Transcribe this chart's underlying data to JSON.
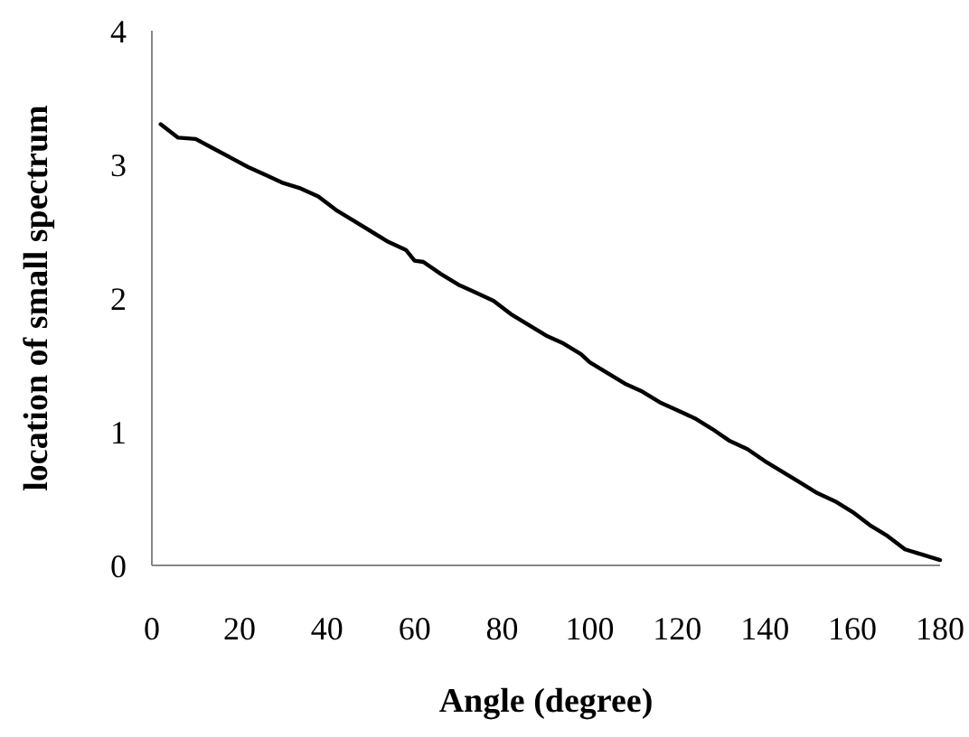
{
  "chart_data": {
    "type": "line",
    "xlabel": "Angle (degree)",
    "ylabel": "location of small spectrum",
    "x": [
      2,
      4,
      6,
      10,
      14,
      18,
      22,
      26,
      30,
      34,
      38,
      42,
      46,
      50,
      54,
      58,
      60,
      62,
      66,
      70,
      74,
      78,
      82,
      86,
      90,
      94,
      98,
      100,
      104,
      108,
      112,
      116,
      120,
      124,
      128,
      132,
      136,
      140,
      144,
      148,
      152,
      156,
      160,
      164,
      168,
      172,
      176,
      180
    ],
    "series": [
      {
        "color": "#000000",
        "values": [
          3.3,
          3.25,
          3.2,
          3.19,
          3.12,
          3.05,
          2.98,
          2.92,
          2.86,
          2.82,
          2.76,
          2.66,
          2.58,
          2.5,
          2.42,
          2.36,
          2.28,
          2.27,
          2.18,
          2.1,
          2.04,
          1.98,
          1.88,
          1.8,
          1.72,
          1.66,
          1.58,
          1.52,
          1.44,
          1.36,
          1.3,
          1.22,
          1.16,
          1.1,
          1.02,
          0.93,
          0.87,
          0.78,
          0.7,
          0.62,
          0.54,
          0.48,
          0.4,
          0.3,
          0.22,
          0.12,
          0.08,
          0.04
        ]
      }
    ],
    "xlim": [
      0,
      180
    ],
    "xticks": [
      0,
      20,
      40,
      60,
      80,
      100,
      120,
      140,
      160,
      180
    ],
    "ylim": [
      0,
      4
    ],
    "yticks": [
      0,
      1,
      2,
      3,
      4
    ],
    "grid": false,
    "marker": "none",
    "line_style": "solid"
  }
}
